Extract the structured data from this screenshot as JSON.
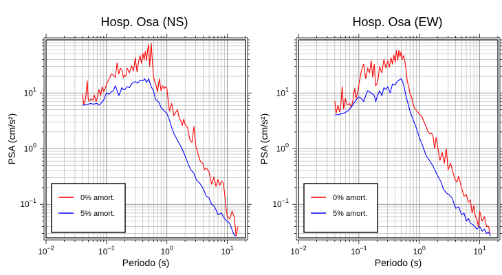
{
  "chart_data": [
    {
      "type": "line",
      "title": "Hosp. Osa (NS)",
      "xlabel": "Periodo (s)",
      "ylabel": "PSA (cm/s²)",
      "x_scale": "log",
      "y_scale": "log",
      "xlim": [
        0.01,
        20
      ],
      "ylim": [
        0.025,
        90
      ],
      "x_ticks": [
        {
          "value": 0.01,
          "base": "10",
          "exp": "−2"
        },
        {
          "value": 0.1,
          "base": "10",
          "exp": "−1"
        },
        {
          "value": 1,
          "base": "10",
          "exp": "0"
        },
        {
          "value": 10,
          "base": "10",
          "exp": "1"
        }
      ],
      "y_ticks": [
        {
          "value": 0.1,
          "base": "10",
          "exp": "−1"
        },
        {
          "value": 1,
          "base": "10",
          "exp": "0"
        },
        {
          "value": 10,
          "base": "10",
          "exp": "1"
        }
      ],
      "grid": true,
      "legend_position": "bottom-left",
      "series": [
        {
          "name": "0% amort.",
          "color": "#ff0000",
          "x": [
            0.04,
            0.042,
            0.045,
            0.048,
            0.05,
            0.053,
            0.056,
            0.06,
            0.063,
            0.067,
            0.07,
            0.075,
            0.08,
            0.085,
            0.09,
            0.095,
            0.1,
            0.11,
            0.12,
            0.13,
            0.14,
            0.15,
            0.16,
            0.17,
            0.18,
            0.19,
            0.2,
            0.21,
            0.22,
            0.24,
            0.26,
            0.28,
            0.3,
            0.32,
            0.34,
            0.36,
            0.38,
            0.4,
            0.42,
            0.44,
            0.46,
            0.48,
            0.5,
            0.52,
            0.55,
            0.58,
            0.6,
            0.63,
            0.66,
            0.7,
            0.75,
            0.8,
            0.85,
            0.9,
            0.95,
            1.0,
            1.1,
            1.2,
            1.3,
            1.4,
            1.5,
            1.6,
            1.7,
            1.8,
            1.9,
            2.0,
            2.2,
            2.4,
            2.6,
            2.8,
            3.0,
            3.3,
            3.6,
            3.9,
            4.2,
            4.5,
            5.0,
            5.5,
            6.0,
            6.5,
            7.0,
            7.5,
            8.0,
            8.5,
            9.0,
            9.5,
            10,
            11,
            12,
            13,
            14,
            15
          ],
          "y": [
            9.5,
            6.2,
            7.8,
            16.5,
            7.5,
            7.2,
            7.9,
            7.4,
            9.2,
            7.0,
            8.1,
            11.5,
            9.0,
            13.0,
            10.5,
            12.0,
            14.5,
            17.5,
            22.0,
            21.0,
            19.0,
            35.0,
            22.0,
            28.0,
            26.0,
            19.0,
            21.0,
            20.0,
            28.0,
            23.0,
            31.0,
            25.0,
            43.0,
            24.0,
            36.0,
            47.0,
            34.0,
            52.0,
            40.0,
            56.0,
            38.0,
            60.0,
            74.0,
            30.0,
            78.0,
            32.0,
            20.0,
            16.0,
            14.0,
            10.5,
            18.0,
            11.0,
            13.5,
            12.0,
            13.0,
            12.0,
            4.8,
            6.5,
            3.9,
            4.5,
            5.0,
            3.5,
            3.2,
            2.6,
            3.4,
            2.7,
            2.4,
            1.45,
            1.3,
            2.5,
            1.15,
            0.78,
            0.58,
            0.55,
            0.42,
            0.45,
            0.38,
            0.23,
            0.31,
            0.21,
            0.28,
            0.22,
            0.26,
            0.25,
            0.16,
            0.09,
            0.06,
            0.055,
            0.075,
            0.06,
            0.027,
            0.04
          ]
        },
        {
          "name": "5% amort.",
          "color": "#0000ff",
          "x": [
            0.04,
            0.045,
            0.05,
            0.055,
            0.06,
            0.065,
            0.07,
            0.075,
            0.08,
            0.09,
            0.1,
            0.11,
            0.12,
            0.13,
            0.14,
            0.15,
            0.16,
            0.17,
            0.18,
            0.19,
            0.2,
            0.22,
            0.24,
            0.26,
            0.28,
            0.3,
            0.33,
            0.36,
            0.4,
            0.43,
            0.46,
            0.5,
            0.53,
            0.56,
            0.6,
            0.65,
            0.7,
            0.75,
            0.8,
            0.9,
            1.0,
            1.1,
            1.2,
            1.3,
            1.5,
            1.7,
            1.9,
            2.1,
            2.3,
            2.5,
            2.8,
            3.1,
            3.5,
            4.0,
            4.5,
            5.0,
            5.5,
            6.0,
            6.5,
            7.0,
            8.0,
            9.0,
            10,
            11,
            12,
            13,
            14
          ],
          "y": [
            6.0,
            6.2,
            6.3,
            6.5,
            6.3,
            6.4,
            6.5,
            6.1,
            6.4,
            7.5,
            10.0,
            9.5,
            10.5,
            11.0,
            13.5,
            11.0,
            9.0,
            10.5,
            12.5,
            11.5,
            11.5,
            13.0,
            12.5,
            14.5,
            15.5,
            16.0,
            15.0,
            17.0,
            16.5,
            18.0,
            15.5,
            18.0,
            14.5,
            12.5,
            11.0,
            7.5,
            7.3,
            6.5,
            5.5,
            4.8,
            4.3,
            3.3,
            2.4,
            1.9,
            1.4,
            1.1,
            0.85,
            0.65,
            0.5,
            0.42,
            0.36,
            0.27,
            0.24,
            0.19,
            0.14,
            0.13,
            0.1,
            0.095,
            0.08,
            0.065,
            0.07,
            0.055,
            0.05,
            0.045,
            0.035,
            0.028,
            0.027
          ]
        }
      ]
    },
    {
      "type": "line",
      "title": "Hosp. Osa (EW)",
      "xlabel": "Periodo (s)",
      "ylabel": "PSA (cm/s²)",
      "x_scale": "log",
      "y_scale": "log",
      "xlim": [
        0.01,
        20
      ],
      "ylim": [
        0.025,
        90
      ],
      "x_ticks": [
        {
          "value": 0.01,
          "base": "10",
          "exp": "−2"
        },
        {
          "value": 0.1,
          "base": "10",
          "exp": "−1"
        },
        {
          "value": 1,
          "base": "10",
          "exp": "0"
        },
        {
          "value": 10,
          "base": "10",
          "exp": "1"
        }
      ],
      "y_ticks": [
        {
          "value": 0.1,
          "base": "10",
          "exp": "−1"
        },
        {
          "value": 1,
          "base": "10",
          "exp": "0"
        },
        {
          "value": 10,
          "base": "10",
          "exp": "1"
        }
      ],
      "grid": true,
      "legend_position": "bottom-left",
      "series": [
        {
          "name": "0% amort.",
          "color": "#ff0000",
          "x": [
            0.04,
            0.042,
            0.045,
            0.048,
            0.05,
            0.053,
            0.056,
            0.06,
            0.063,
            0.067,
            0.07,
            0.075,
            0.08,
            0.085,
            0.09,
            0.095,
            0.1,
            0.11,
            0.12,
            0.13,
            0.14,
            0.15,
            0.16,
            0.17,
            0.18,
            0.19,
            0.2,
            0.21,
            0.22,
            0.24,
            0.26,
            0.28,
            0.3,
            0.32,
            0.34,
            0.36,
            0.38,
            0.4,
            0.42,
            0.44,
            0.46,
            0.48,
            0.5,
            0.52,
            0.55,
            0.58,
            0.6,
            0.63,
            0.66,
            0.7,
            0.75,
            0.8,
            0.85,
            0.9,
            0.95,
            1.0,
            1.1,
            1.2,
            1.3,
            1.4,
            1.5,
            1.6,
            1.7,
            1.8,
            1.9,
            2.0,
            2.2,
            2.4,
            2.6,
            2.8,
            3.0,
            3.3,
            3.6,
            3.9,
            4.2,
            4.5,
            5.0,
            5.5,
            6.0,
            6.5,
            7.0,
            7.5,
            8.0,
            8.5,
            9.0,
            9.5,
            10,
            11,
            12,
            13,
            14,
            15
          ],
          "y": [
            7.2,
            4.3,
            6.0,
            4.6,
            5.5,
            13.0,
            5.2,
            8.0,
            6.3,
            6.2,
            6.5,
            5.5,
            7.5,
            12.0,
            8.0,
            10.0,
            14.0,
            25.0,
            33.0,
            18.0,
            28.0,
            23.0,
            38.0,
            19.0,
            33.0,
            13.5,
            15.0,
            19.0,
            30.0,
            23.0,
            40.0,
            28.0,
            38.0,
            29.0,
            43.0,
            33.0,
            48.0,
            36.0,
            58.0,
            39.0,
            58.0,
            45.0,
            55.0,
            40.0,
            47.0,
            36.0,
            28.0,
            17.0,
            13.5,
            10.0,
            8.2,
            6.0,
            5.2,
            4.8,
            4.5,
            4.2,
            3.8,
            3.0,
            2.5,
            2.0,
            1.85,
            1.9,
            1.6,
            1.0,
            1.6,
            1.15,
            0.62,
            0.85,
            0.55,
            1.0,
            0.42,
            0.55,
            0.38,
            0.28,
            0.25,
            0.32,
            0.2,
            0.14,
            0.15,
            0.11,
            0.12,
            0.07,
            0.095,
            0.06,
            0.055,
            0.04,
            0.075,
            0.05,
            0.06,
            0.04,
            0.04,
            0.03
          ]
        },
        {
          "name": "5% amort.",
          "color": "#0000ff",
          "x": [
            0.04,
            0.045,
            0.05,
            0.055,
            0.06,
            0.065,
            0.07,
            0.075,
            0.08,
            0.09,
            0.1,
            0.11,
            0.12,
            0.13,
            0.14,
            0.15,
            0.16,
            0.17,
            0.18,
            0.19,
            0.2,
            0.22,
            0.24,
            0.26,
            0.28,
            0.3,
            0.33,
            0.36,
            0.4,
            0.43,
            0.46,
            0.5,
            0.53,
            0.56,
            0.6,
            0.65,
            0.7,
            0.75,
            0.8,
            0.9,
            1.0,
            1.1,
            1.2,
            1.3,
            1.5,
            1.7,
            1.9,
            2.1,
            2.3,
            2.5,
            2.8,
            3.1,
            3.5,
            4.0,
            4.5,
            5.0,
            5.5,
            6.0,
            6.5,
            7.0,
            8.0,
            9.0,
            10,
            11,
            12,
            13,
            14,
            15
          ],
          "y": [
            4.0,
            4.1,
            4.2,
            4.3,
            4.5,
            4.7,
            5.1,
            5.6,
            6.2,
            7.5,
            8.5,
            8.0,
            7.0,
            9.0,
            11.0,
            10.5,
            10.0,
            9.5,
            9.0,
            7.0,
            8.5,
            11.0,
            9.0,
            12.5,
            11.5,
            13.0,
            10.0,
            14.5,
            14.0,
            16.0,
            17.0,
            18.0,
            16.0,
            13.0,
            9.0,
            6.5,
            4.8,
            3.9,
            3.2,
            2.3,
            1.6,
            1.25,
            0.95,
            0.75,
            0.6,
            0.48,
            0.37,
            0.3,
            0.25,
            0.19,
            0.16,
            0.15,
            0.13,
            0.085,
            0.09,
            0.065,
            0.07,
            0.05,
            0.056,
            0.046,
            0.042,
            0.036,
            0.04,
            0.033,
            0.036,
            0.03,
            0.032,
            0.027
          ]
        }
      ]
    }
  ]
}
